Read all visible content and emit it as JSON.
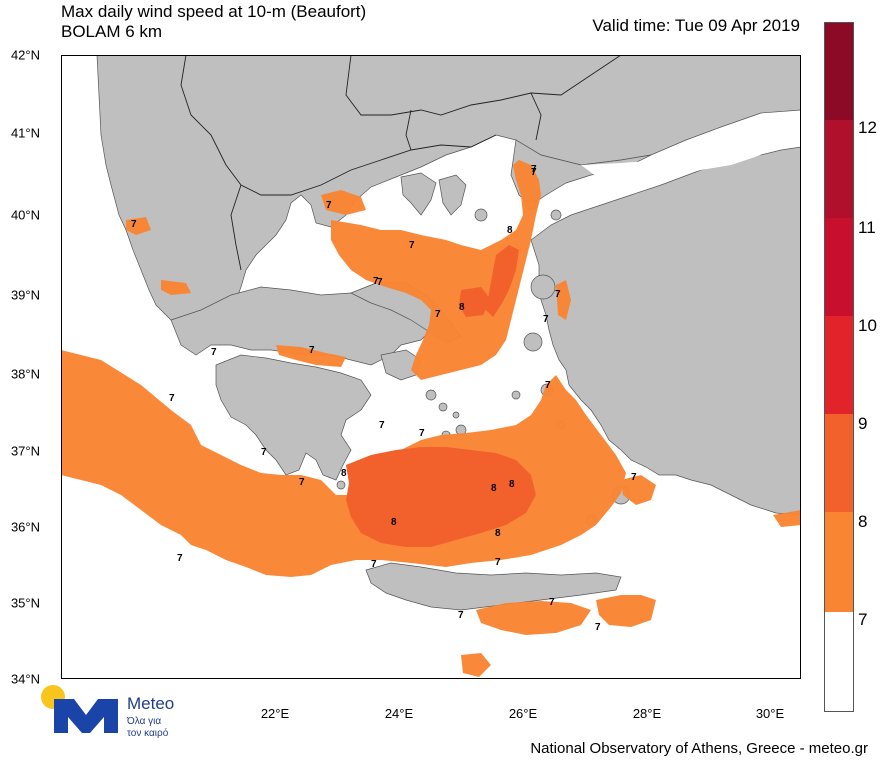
{
  "title": {
    "line1": "Max daily wind speed at 10-m (Beaufort)",
    "line2": "BOLAM 6 km"
  },
  "valid_time": "Valid time: Tue 09 Apr 2019",
  "axes": {
    "lat_labels": [
      "42°N",
      "41°N",
      "40°N",
      "39°N",
      "38°N",
      "37°N",
      "36°N",
      "35°N",
      "34°N"
    ],
    "lon_labels": [
      "22°E",
      "24°E",
      "26°E",
      "28°E",
      "30°E"
    ]
  },
  "colorbar": {
    "levels": [
      "7",
      "8",
      "9",
      "10",
      "11",
      "12"
    ],
    "colors": [
      "#ffffff",
      "#f98533",
      "#f2612b",
      "#e2242a",
      "#c8102e",
      "#b0102b",
      "#8c0a25"
    ]
  },
  "map_colors": {
    "sea": "#ffffff",
    "land": "#bfbfbf",
    "border": "#222222",
    "beaufort_7": "#f98533",
    "beaufort_8": "#f2612b"
  },
  "wind_labels": [
    "7",
    "7",
    "7",
    "7",
    "7",
    "7",
    "7",
    "7",
    "7",
    "7",
    "7",
    "7",
    "7",
    "7",
    "7",
    "7",
    "7",
    "7",
    "7",
    "7",
    "7",
    "7",
    "7",
    "7",
    "7",
    "8",
    "8",
    "8",
    "8",
    "8",
    "8",
    "8"
  ],
  "logo": {
    "name": "Meteo",
    "tagline_1": "Όλα για",
    "tagline_2": "τον καιρό",
    "icon": "meteo-sun-m-logo"
  },
  "footer": "National Observatory of Athens, Greece - meteo.gr"
}
